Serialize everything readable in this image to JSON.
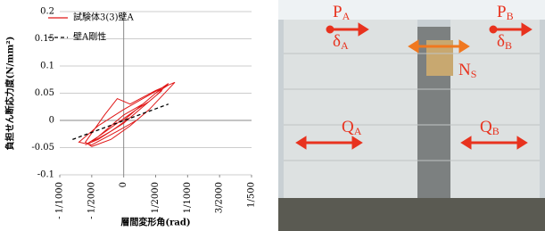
{
  "chart_data": {
    "type": "line",
    "y_label": "負担せん断応力度(N/mm²)",
    "x_label": "層間変形角(rad)",
    "xlim": [
      -0.001,
      0.002
    ],
    "ylim": [
      -0.1,
      0.2
    ],
    "xticks": [
      {
        "value": -0.001,
        "label": "- 1/1000"
      },
      {
        "value": -0.0005,
        "label": "- 1/2000"
      },
      0,
      {
        "value": 0.0005,
        "label": "1/2000"
      },
      {
        "value": 0.001,
        "label": "1/1000"
      },
      {
        "value": 0.0015,
        "label": "3/2000"
      },
      {
        "value": 0.002,
        "label": "1/500"
      }
    ],
    "yticks": [
      -0.1,
      -0.05,
      0,
      0.05,
      0.1,
      0.15,
      0.2
    ],
    "grid": true,
    "legend": "upper left",
    "series": [
      {
        "name": "試験体3(3)壁A",
        "color": "#e01818",
        "dash": false,
        "x": [
          0,
          0.0002,
          0.0004,
          0.0006,
          0.0007,
          0.0005,
          0.0002,
          0,
          -0.0002,
          -0.0004,
          -0.0006,
          -0.0004,
          -0.0001,
          0.0002,
          0.0004,
          0.0006,
          0.0004,
          0.0001,
          -0.0002,
          -0.0005,
          -0.0003,
          0,
          0.0003,
          0.0005,
          0.0007,
          0.0005,
          0.0001,
          -0.0001,
          -0.0003,
          -0.0006,
          -0.0005,
          -0.0002,
          0.0001,
          0.0004,
          0.0008,
          0.0006,
          0.0003,
          0,
          -0.0004,
          -0.0007,
          -0.0005,
          -0.0001,
          0.0002
        ],
        "values": [
          0,
          0.02,
          0.04,
          0.06,
          0.068,
          0.045,
          0.015,
          -0.005,
          -0.02,
          -0.035,
          -0.045,
          -0.03,
          -0.005,
          0.02,
          0.035,
          0.055,
          0.035,
          0.005,
          -0.02,
          -0.04,
          -0.02,
          0.01,
          0.03,
          0.05,
          0.065,
          0.055,
          0.03,
          0.04,
          0.01,
          -0.04,
          -0.048,
          -0.035,
          -0.01,
          0.02,
          0.07,
          0.06,
          0.04,
          0.02,
          -0.01,
          -0.04,
          -0.045,
          -0.02,
          0
        ]
      },
      {
        "name": "壁A剛性",
        "color": "#000000",
        "dash": true,
        "x": [
          -0.0008,
          0.0007
        ],
        "values": [
          -0.035,
          0.03
        ]
      }
    ]
  },
  "photo": {
    "labels": [
      {
        "main": "P",
        "sub": "A",
        "color": "#e8321e"
      },
      {
        "main": "δ",
        "sub": "A",
        "color": "#e8321e"
      },
      {
        "main": "P",
        "sub": "B",
        "color": "#e8321e"
      },
      {
        "main": "δ",
        "sub": "B",
        "color": "#e8321e"
      },
      {
        "main": "N",
        "sub": "S",
        "color": "#f07820"
      },
      {
        "main": "Q",
        "sub": "A",
        "color": "#e8321e"
      },
      {
        "main": "Q",
        "sub": "B",
        "color": "#e8321e"
      }
    ]
  }
}
